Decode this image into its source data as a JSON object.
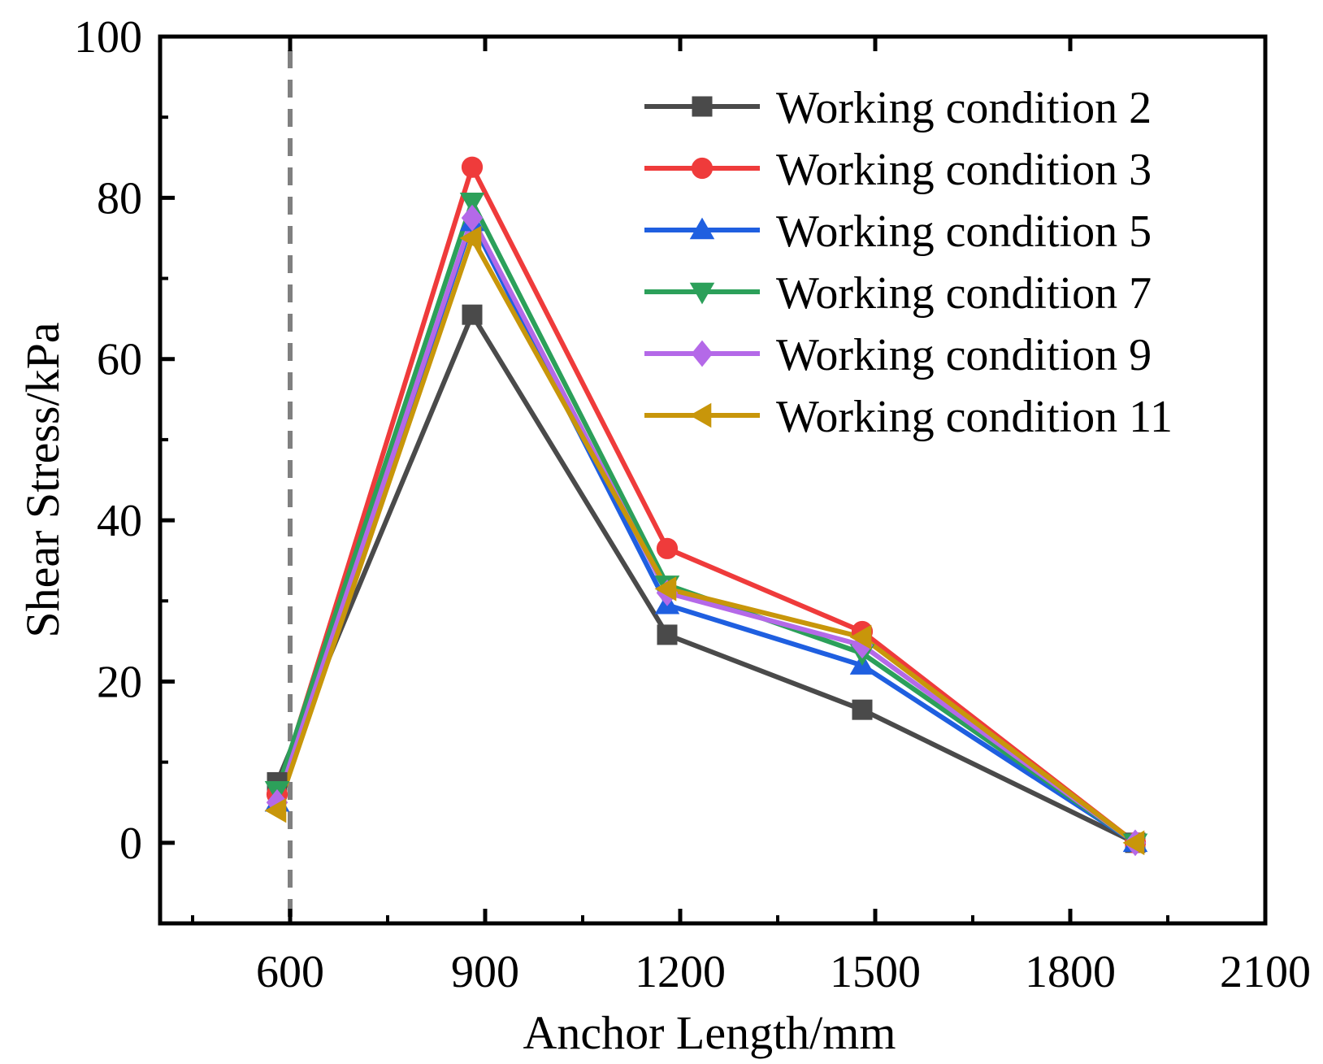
{
  "chart_data": {
    "type": "line",
    "title": "",
    "xlabel": "Anchor Length/mm",
    "ylabel": "Shear Stress/kPa",
    "xlim": [
      400,
      2100
    ],
    "ylim": [
      -10,
      100
    ],
    "xticks": [
      600,
      900,
      1200,
      1500,
      1800,
      2100
    ],
    "yticks": [
      0,
      20,
      40,
      60,
      80,
      100
    ],
    "xtick_labels": [
      "600",
      "900",
      "1200",
      "1500",
      "1800",
      "2100"
    ],
    "ytick_labels": [
      "0",
      "20",
      "40",
      "60",
      "80",
      "100"
    ],
    "reference_line": {
      "x": 600,
      "style": "dashed",
      "color": "#808080"
    },
    "legend_position": "top-right",
    "grid": false,
    "x": [
      580,
      880,
      1180,
      1480,
      1900
    ],
    "series": [
      {
        "name": "Working condition 2",
        "color": "#4a4a4a",
        "marker": "square",
        "values": [
          7.5,
          65.5,
          25.8,
          16.5,
          0
        ]
      },
      {
        "name": "Working condition 3",
        "color": "#ef3b3b",
        "marker": "circle",
        "values": [
          6.0,
          83.8,
          36.5,
          26.2,
          0
        ]
      },
      {
        "name": "Working condition 5",
        "color": "#1f5fe0",
        "marker": "triangle-up",
        "values": [
          5.0,
          77.0,
          29.5,
          22.0,
          0
        ]
      },
      {
        "name": "Working condition 7",
        "color": "#2ca05a",
        "marker": "triangle-down",
        "values": [
          6.5,
          79.5,
          32.0,
          23.5,
          0
        ]
      },
      {
        "name": "Working condition 9",
        "color": "#b469e8",
        "marker": "diamond",
        "values": [
          5.0,
          77.5,
          31.0,
          24.5,
          0
        ]
      },
      {
        "name": "Working condition 11",
        "color": "#c8960a",
        "marker": "triangle-left",
        "values": [
          4.0,
          75.0,
          31.5,
          25.5,
          0
        ]
      }
    ]
  }
}
